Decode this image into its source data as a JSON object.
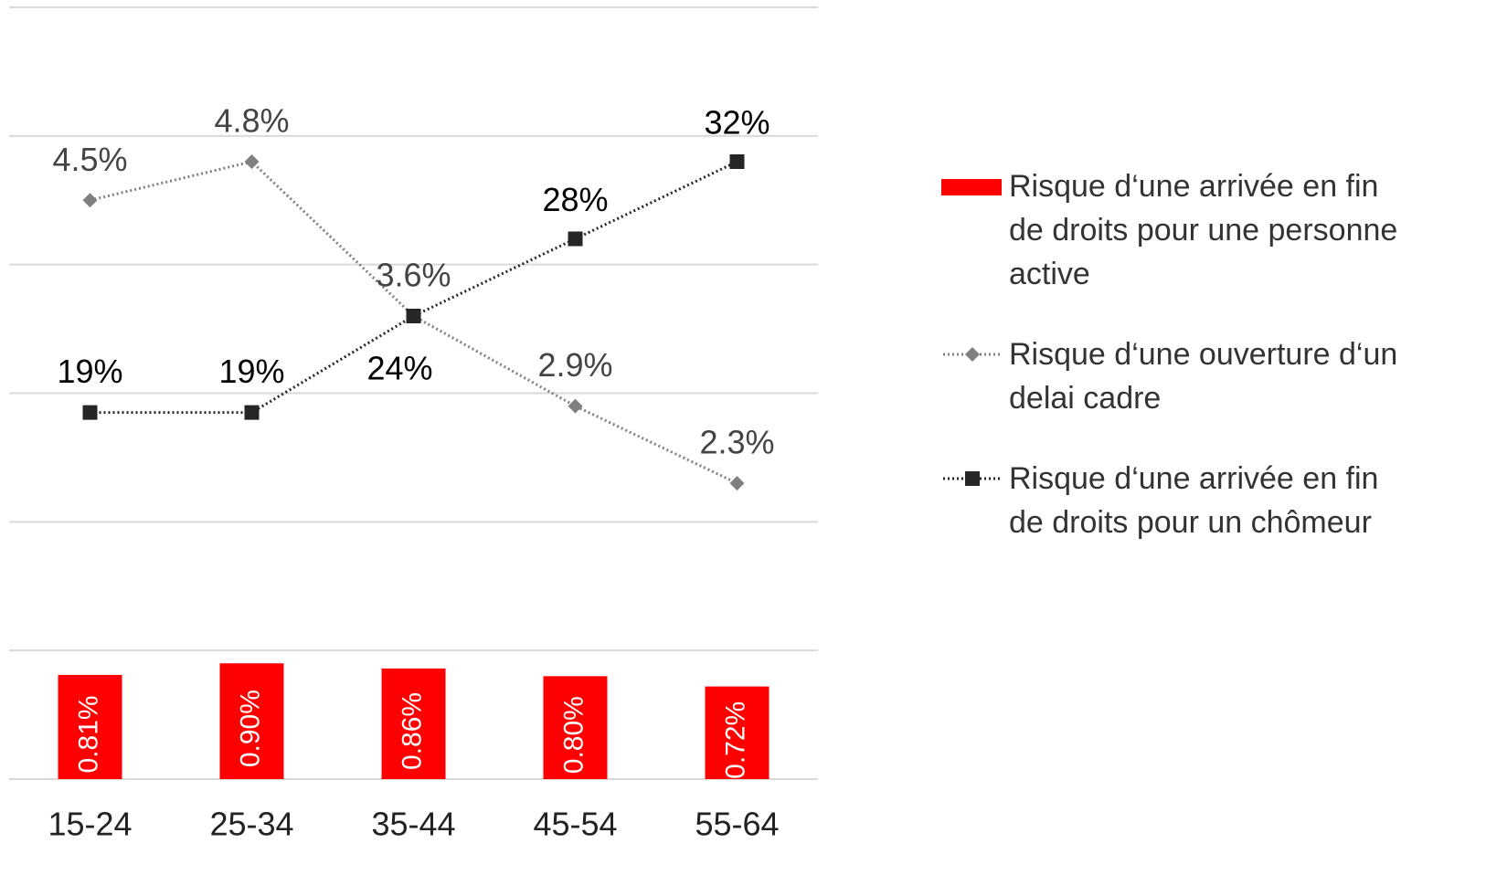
{
  "chart_data": {
    "type": "bar_line",
    "categories": [
      "15-24",
      "25-34",
      "35-44",
      "45-54",
      "55-64"
    ],
    "ylim": [
      0,
      6
    ],
    "yticks": [
      0,
      1,
      2,
      3,
      4,
      5,
      6
    ],
    "y2lim": [
      0,
      40
    ],
    "grid": true,
    "series": [
      {
        "name": "Risque d‘une arrivée en fin de droits pour une personne active",
        "type": "bar",
        "color": "#ff0000",
        "values": [
          0.81,
          0.9,
          0.86,
          0.8,
          0.72
        ],
        "value_labels": [
          "0.81%",
          "0.90%",
          "0.86%",
          "0.80%",
          "0.72%"
        ]
      },
      {
        "name": "Risque d‘une ouverture d‘un delai cadre",
        "type": "line",
        "marker": "diamond",
        "color": "#808080",
        "values": [
          4.5,
          4.8,
          3.6,
          2.9,
          2.3
        ],
        "value_labels": [
          "4.5%",
          "4.8%",
          "3.6%",
          "2.9%",
          "2.3%"
        ]
      },
      {
        "name": "Risque d‘une arrivée en fin de droits pour un chômeur",
        "type": "line",
        "marker": "square",
        "color": "#262626",
        "axis": "y2",
        "values": [
          19,
          19,
          24,
          28,
          32
        ],
        "value_labels": [
          "19%",
          "19%",
          "24%",
          "28%",
          "32%"
        ]
      }
    ]
  }
}
